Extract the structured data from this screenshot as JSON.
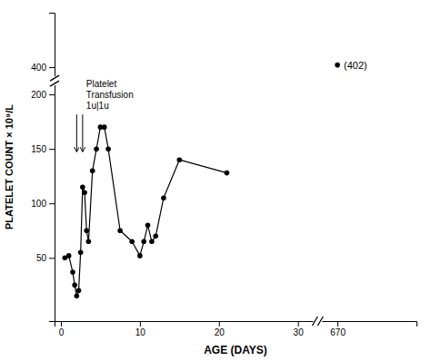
{
  "chart_data": {
    "type": "line",
    "x": [
      0.5,
      1.0,
      1.5,
      1.75,
      2.0,
      2.25,
      2.5,
      2.75,
      3.0,
      3.25,
      3.5,
      4.0,
      4.5,
      5.0,
      5.5,
      6.0,
      7.5,
      9.0,
      10.0,
      10.5,
      11.0,
      11.5,
      12.0,
      13.0,
      15.0,
      21.0,
      670
    ],
    "values": [
      50,
      52,
      37,
      25,
      15,
      20,
      55,
      115,
      110,
      75,
      65,
      130,
      150,
      170,
      170,
      150,
      75,
      65,
      52,
      65,
      80,
      65,
      70,
      105,
      140,
      128,
      402
    ],
    "color": "#000000",
    "marker": "circle",
    "xlabel": "AGE (DAYS)",
    "ylabel": "PLATELET COUNT × 10⁹/L",
    "xlim": [
      -0.8,
      680
    ],
    "xticks": [
      0,
      10,
      20,
      30,
      670
    ],
    "ylim": [
      -8,
      450
    ],
    "yticks": [
      50,
      100,
      150,
      200,
      400
    ],
    "annotations": [
      {
        "text": "(402)",
        "x": 670,
        "y": 402
      },
      {
        "text": "Platelet\nTransfusion\n1u|1u",
        "arrows_x": [
          2.0,
          2.75
        ]
      }
    ]
  }
}
